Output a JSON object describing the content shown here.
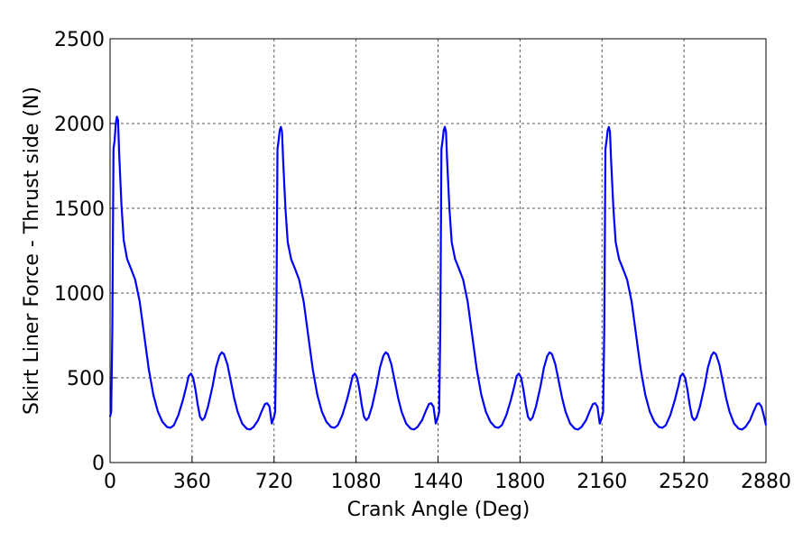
{
  "chart_data": {
    "type": "line",
    "xlabel": "Crank Angle (Deg)",
    "ylabel": "Skirt Liner Force - Thrust side (N)",
    "xlim": [
      0,
      2880
    ],
    "xticks": [
      0,
      360,
      720,
      1080,
      1440,
      1800,
      2160,
      2520,
      2880
    ],
    "ylim": [
      0,
      2500
    ],
    "yticks": [
      0,
      500,
      1000,
      1500,
      2000,
      2500
    ],
    "grid": true,
    "x": [
      0,
      5,
      10,
      15,
      20,
      25,
      30,
      35,
      40,
      50,
      60,
      75,
      90,
      110,
      130,
      150,
      170,
      190,
      210,
      230,
      250,
      265,
      280,
      300,
      320,
      335,
      345,
      355,
      365,
      375,
      385,
      395,
      405,
      415,
      430,
      450,
      465,
      480,
      490,
      500,
      515,
      530,
      545,
      560,
      580,
      600,
      615,
      630,
      650,
      665,
      680,
      690,
      700,
      710,
      720,
      725,
      730,
      735,
      740,
      745,
      750,
      755,
      760,
      770,
      780,
      795,
      810,
      830,
      850,
      870,
      890,
      910,
      930,
      950,
      970,
      985,
      1000,
      1020,
      1040,
      1055,
      1065,
      1075,
      1085,
      1095,
      1105,
      1115,
      1125,
      1135,
      1150,
      1170,
      1185,
      1200,
      1210,
      1220,
      1235,
      1250,
      1265,
      1280,
      1300,
      1320,
      1335,
      1350,
      1370,
      1385,
      1400,
      1410,
      1420,
      1430,
      1440,
      1445,
      1450,
      1455,
      1460,
      1465,
      1470,
      1475,
      1480,
      1490,
      1500,
      1515,
      1530,
      1550,
      1570,
      1590,
      1610,
      1630,
      1650,
      1670,
      1690,
      1705,
      1720,
      1740,
      1760,
      1775,
      1785,
      1795,
      1805,
      1815,
      1825,
      1835,
      1845,
      1855,
      1870,
      1890,
      1905,
      1920,
      1930,
      1940,
      1955,
      1970,
      1985,
      2000,
      2020,
      2040,
      2055,
      2070,
      2090,
      2105,
      2120,
      2130,
      2140,
      2150,
      2160,
      2165,
      2170,
      2175,
      2180,
      2185,
      2190,
      2195,
      2200,
      2210,
      2220,
      2235,
      2250,
      2270,
      2290,
      2310,
      2330,
      2350,
      2370,
      2390,
      2410,
      2425,
      2440,
      2460,
      2480,
      2495,
      2505,
      2515,
      2525,
      2535,
      2545,
      2555,
      2565,
      2575,
      2590,
      2610,
      2625,
      2640,
      2650,
      2660,
      2675,
      2690,
      2705,
      2720,
      2740,
      2760,
      2775,
      2790,
      2810,
      2825,
      2840,
      2850,
      2860,
      2870,
      2880
    ],
    "series": [
      {
        "color": "#0000ff",
        "values": [
          270,
          300,
          800,
          1850,
          1900,
          2000,
          2040,
          2020,
          1820,
          1520,
          1310,
          1200,
          1150,
          1080,
          950,
          750,
          550,
          400,
          300,
          240,
          210,
          205,
          220,
          280,
          370,
          450,
          510,
          525,
          500,
          430,
          340,
          270,
          250,
          265,
          330,
          450,
          560,
          630,
          650,
          640,
          580,
          480,
          380,
          300,
          230,
          200,
          195,
          210,
          250,
          300,
          345,
          350,
          330,
          230,
          270,
          300,
          800,
          1850,
          1900,
          1960,
          1980,
          1950,
          1780,
          1500,
          1300,
          1200,
          1150,
          1080,
          950,
          750,
          550,
          400,
          300,
          240,
          210,
          205,
          220,
          280,
          370,
          450,
          510,
          525,
          500,
          430,
          340,
          270,
          250,
          265,
          330,
          450,
          560,
          630,
          650,
          640,
          580,
          480,
          380,
          300,
          230,
          200,
          195,
          210,
          250,
          300,
          345,
          350,
          330,
          230,
          270,
          300,
          800,
          1850,
          1900,
          1960,
          1980,
          1950,
          1780,
          1500,
          1300,
          1200,
          1150,
          1080,
          950,
          750,
          550,
          400,
          300,
          240,
          210,
          205,
          220,
          280,
          370,
          450,
          510,
          525,
          500,
          430,
          340,
          270,
          250,
          265,
          330,
          450,
          560,
          630,
          650,
          640,
          580,
          480,
          380,
          300,
          230,
          200,
          195,
          210,
          250,
          300,
          345,
          350,
          330,
          230,
          270,
          300,
          800,
          1850,
          1900,
          1960,
          1980,
          1950,
          1780,
          1500,
          1300,
          1200,
          1150,
          1080,
          950,
          750,
          550,
          400,
          300,
          240,
          210,
          205,
          220,
          280,
          370,
          450,
          510,
          525,
          500,
          430,
          340,
          270,
          250,
          265,
          330,
          450,
          560,
          630,
          650,
          640,
          580,
          480,
          380,
          300,
          230,
          200,
          195,
          210,
          250,
          300,
          345,
          350,
          330,
          280,
          220
        ]
      }
    ]
  }
}
